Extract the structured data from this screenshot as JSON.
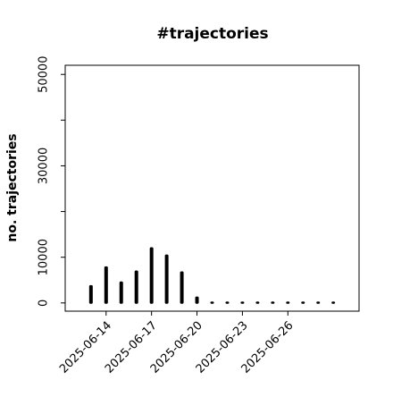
{
  "chart_data": {
    "type": "bar",
    "title": "#trajectories",
    "y_label": "no. trajectories",
    "x": [
      "2025-06-13",
      "2025-06-14",
      "2025-06-15",
      "2025-06-16",
      "2025-06-17",
      "2025-06-18",
      "2025-06-19",
      "2025-06-20",
      "2025-06-21",
      "2025-06-22",
      "2025-06-23",
      "2025-06-24",
      "2025-06-25",
      "2025-06-26",
      "2025-06-27",
      "2025-06-28",
      "2025-06-29"
    ],
    "values": [
      3700,
      7800,
      4500,
      6900,
      12000,
      10400,
      6700,
      1200,
      100,
      100,
      100,
      100,
      100,
      100,
      100,
      100,
      100
    ],
    "color": "#000000",
    "xticks": [
      "2025-06-14",
      "2025-06-17",
      "2025-06-20",
      "2025-06-23",
      "2025-06-26"
    ],
    "ylim": [
      -1800,
      52000
    ],
    "yticks": [
      0,
      10000,
      30000,
      50000
    ],
    "yminorticks": [
      20000,
      40000
    ]
  }
}
